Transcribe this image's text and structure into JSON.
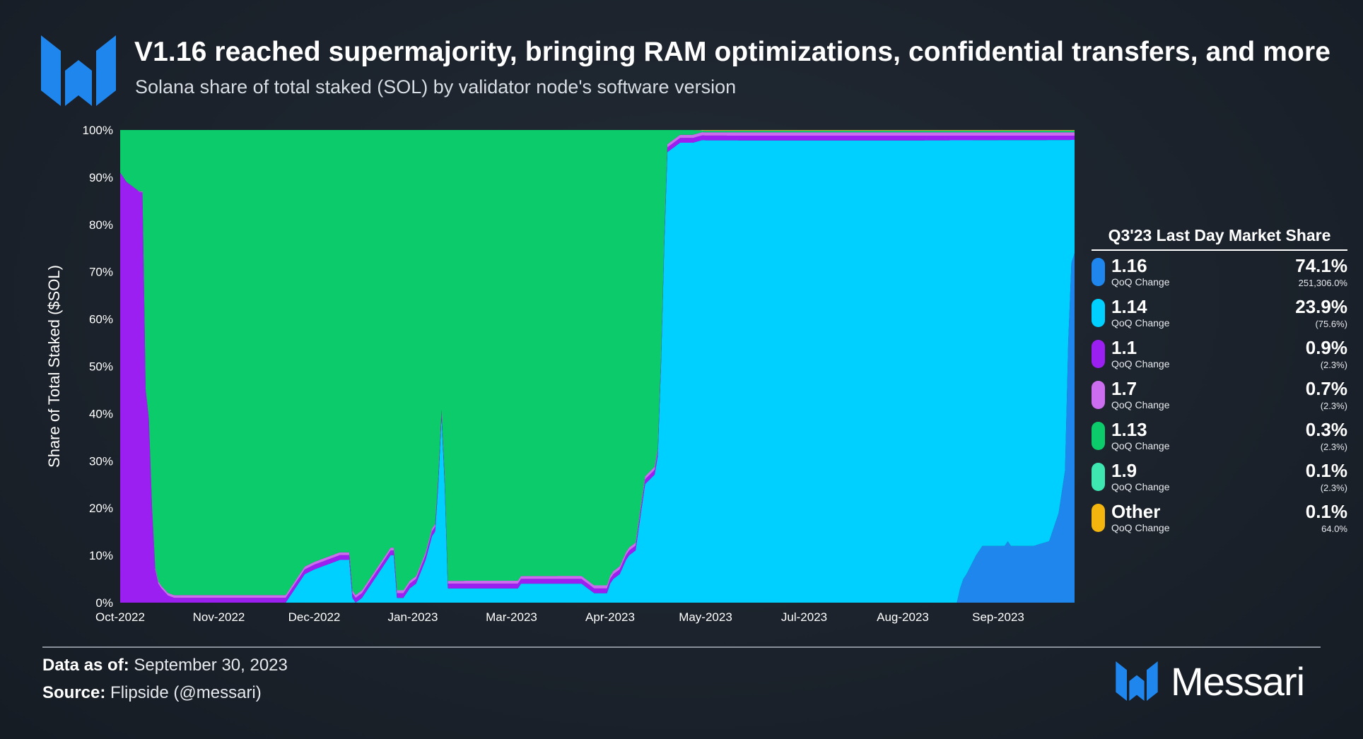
{
  "header": {
    "title": "V1.16 reached supermajority, bringing RAM optimizations, confidential transfers, and more",
    "subtitle": "Solana share of total staked (SOL) by validator node's software version"
  },
  "legend": {
    "title": "Q3'23 Last Day Market Share",
    "sub_label": "QoQ Change",
    "items": [
      {
        "name": "1.16",
        "value": "74.1%",
        "change": "251,306.0%",
        "color": "#1f86ee"
      },
      {
        "name": "1.14",
        "value": "23.9%",
        "change": "(75.6%)",
        "color": "#00d0ff"
      },
      {
        "name": "1.1",
        "value": "0.9%",
        "change": "(2.3%)",
        "color": "#9b1ff0"
      },
      {
        "name": "1.7",
        "value": "0.7%",
        "change": "(2.3%)",
        "color": "#cc6df0"
      },
      {
        "name": "1.13",
        "value": "0.3%",
        "change": "(2.3%)",
        "color": "#0ccb6b"
      },
      {
        "name": "1.9",
        "value": "0.1%",
        "change": "(2.3%)",
        "color": "#3ee6b0"
      },
      {
        "name": "Other",
        "value": "0.1%",
        "change": "64.0%",
        "color": "#f5b50f"
      }
    ]
  },
  "footer": {
    "data_as_of_label": "Data as of:",
    "data_as_of_value": "September 30, 2023",
    "source_label": "Source:",
    "source_value": "Flipside (@messari)"
  },
  "brand": {
    "name": "Messari",
    "color": "#1f86ee"
  },
  "chart_data": {
    "type": "area",
    "stacked": true,
    "ylabel": "Share of Total Staked ($SOL)",
    "xlabel": "",
    "ylim": [
      0,
      100
    ],
    "yticks": [
      "0%",
      "10%",
      "20%",
      "30%",
      "40%",
      "50%",
      "60%",
      "70%",
      "80%",
      "90%",
      "100%"
    ],
    "xticks": [
      {
        "label": "Oct-2022",
        "x": 0
      },
      {
        "label": "Nov-2022",
        "x": 31
      },
      {
        "label": "Dec-2022",
        "x": 61
      },
      {
        "label": "Jan-2023",
        "x": 92
      },
      {
        "label": "Mar-2023",
        "x": 123
      },
      {
        "label": "Apr-2023",
        "x": 154
      },
      {
        "label": "May-2023",
        "x": 184
      },
      {
        "label": "Jul-2023",
        "x": 215
      },
      {
        "label": "Aug-2023",
        "x": 246
      },
      {
        "label": "Sep-2023",
        "x": 276
      }
    ],
    "x_max": 300,
    "grid": false,
    "series": [
      {
        "name": "1.16",
        "color": "#1f86ee",
        "points": [
          [
            0,
            0
          ],
          [
            263,
            0
          ],
          [
            264,
            3
          ],
          [
            265,
            5
          ],
          [
            266,
            6
          ],
          [
            269,
            10
          ],
          [
            271,
            12
          ],
          [
            278,
            12
          ],
          [
            279,
            13
          ],
          [
            280,
            12
          ],
          [
            287,
            12
          ],
          [
            292,
            13
          ],
          [
            293,
            15
          ],
          [
            295,
            19
          ],
          [
            297,
            28
          ],
          [
            298,
            55
          ],
          [
            299,
            72
          ],
          [
            300,
            74
          ]
        ]
      },
      {
        "name": "1.14",
        "color": "#00d0ff",
        "points": [
          [
            0,
            0
          ],
          [
            52,
            0
          ],
          [
            54,
            2
          ],
          [
            58,
            6
          ],
          [
            61,
            7
          ],
          [
            65,
            8
          ],
          [
            69,
            9
          ],
          [
            72,
            9
          ],
          [
            73,
            1
          ],
          [
            74,
            0
          ],
          [
            76,
            1
          ],
          [
            78,
            3
          ],
          [
            81,
            6
          ],
          [
            83,
            8
          ],
          [
            85,
            10
          ],
          [
            86,
            10
          ],
          [
            87,
            1
          ],
          [
            88,
            1
          ],
          [
            89,
            1
          ],
          [
            91,
            3
          ],
          [
            93,
            4
          ],
          [
            96,
            9
          ],
          [
            98,
            14
          ],
          [
            99,
            15
          ],
          [
            100,
            25
          ],
          [
            101,
            39
          ],
          [
            102,
            25
          ],
          [
            103,
            3
          ],
          [
            108,
            3
          ],
          [
            114,
            3
          ],
          [
            125,
            3
          ],
          [
            126,
            4
          ],
          [
            131,
            4
          ],
          [
            139,
            4
          ],
          [
            145,
            4
          ],
          [
            149,
            2
          ],
          [
            153,
            2
          ],
          [
            154,
            4
          ],
          [
            155,
            5
          ],
          [
            157,
            6
          ],
          [
            159,
            9
          ],
          [
            160,
            10
          ],
          [
            162,
            11
          ],
          [
            165,
            25
          ],
          [
            168,
            27
          ],
          [
            169,
            31
          ],
          [
            170,
            50
          ],
          [
            171,
            75
          ],
          [
            172,
            95
          ],
          [
            174,
            96
          ],
          [
            176,
            97
          ],
          [
            180,
            97
          ],
          [
            183,
            98
          ],
          [
            200,
            98
          ],
          [
            230,
            98
          ],
          [
            263,
            98
          ],
          [
            264,
            95
          ],
          [
            265,
            93
          ],
          [
            266,
            92
          ],
          [
            269,
            88
          ],
          [
            271,
            86
          ],
          [
            278,
            86
          ],
          [
            279,
            85
          ],
          [
            280,
            86
          ],
          [
            287,
            86
          ],
          [
            292,
            85
          ],
          [
            293,
            83
          ],
          [
            295,
            79
          ],
          [
            297,
            70
          ],
          [
            298,
            43
          ],
          [
            299,
            26
          ],
          [
            300,
            24
          ]
        ]
      },
      {
        "name": "1.1",
        "color": "#9b1ff0",
        "points": [
          [
            0,
            91
          ],
          [
            2,
            89
          ],
          [
            4,
            88
          ],
          [
            6,
            87
          ],
          [
            7,
            87
          ],
          [
            8,
            45
          ],
          [
            9,
            39
          ],
          [
            10,
            20
          ],
          [
            11,
            7
          ],
          [
            12,
            4
          ],
          [
            13,
            3
          ],
          [
            15,
            1.5
          ],
          [
            17,
            1
          ],
          [
            20,
            1
          ],
          [
            30,
            1
          ],
          [
            40,
            1
          ],
          [
            52,
            1
          ],
          [
            60,
            1
          ],
          [
            72,
            1
          ],
          [
            74,
            1
          ],
          [
            80,
            1
          ],
          [
            90,
            1
          ],
          [
            100,
            1
          ],
          [
            110,
            1
          ],
          [
            120,
            1
          ],
          [
            130,
            1
          ],
          [
            140,
            1
          ],
          [
            150,
            1
          ],
          [
            160,
            1
          ],
          [
            170,
            1
          ],
          [
            180,
            1
          ],
          [
            200,
            1
          ],
          [
            250,
            1
          ],
          [
            300,
            0.9
          ]
        ]
      },
      {
        "name": "1.7",
        "color": "#cc6df0",
        "points": [
          [
            0,
            0
          ],
          [
            5,
            0
          ],
          [
            10,
            0.5
          ],
          [
            20,
            0.6
          ],
          [
            100,
            0.6
          ],
          [
            200,
            0.7
          ],
          [
            300,
            0.7
          ]
        ]
      },
      {
        "name": "1.13",
        "color": "#0ccb6b",
        "points": [
          [
            0,
            9
          ],
          [
            2,
            11
          ],
          [
            4,
            12
          ],
          [
            6,
            13
          ],
          [
            7,
            13
          ],
          [
            8,
            55
          ],
          [
            9,
            61
          ],
          [
            10,
            80
          ],
          [
            11,
            93
          ],
          [
            12,
            96
          ],
          [
            13,
            97
          ],
          [
            15,
            97.5
          ],
          [
            17,
            98
          ],
          [
            20,
            98
          ],
          [
            30,
            98
          ],
          [
            40,
            98
          ],
          [
            52,
            98
          ],
          [
            54,
            96
          ],
          [
            58,
            92
          ],
          [
            61,
            91
          ],
          [
            65,
            90
          ],
          [
            69,
            89
          ],
          [
            72,
            89
          ],
          [
            73,
            97
          ],
          [
            74,
            98
          ],
          [
            76,
            97
          ],
          [
            78,
            95
          ],
          [
            81,
            92
          ],
          [
            83,
            90
          ],
          [
            85,
            88
          ],
          [
            86,
            88
          ],
          [
            87,
            97
          ],
          [
            88,
            97
          ],
          [
            89,
            97
          ],
          [
            91,
            95
          ],
          [
            93,
            94
          ],
          [
            96,
            89
          ],
          [
            98,
            84
          ],
          [
            99,
            83
          ],
          [
            100,
            73
          ],
          [
            101,
            59
          ],
          [
            102,
            73
          ],
          [
            103,
            95
          ],
          [
            108,
            95
          ],
          [
            114,
            95
          ],
          [
            125,
            95
          ],
          [
            126,
            94
          ],
          [
            131,
            94
          ],
          [
            139,
            94
          ],
          [
            145,
            94
          ],
          [
            149,
            96
          ],
          [
            153,
            96
          ],
          [
            154,
            94
          ],
          [
            155,
            93
          ],
          [
            157,
            92
          ],
          [
            159,
            89
          ],
          [
            160,
            88
          ],
          [
            162,
            87
          ],
          [
            165,
            73
          ],
          [
            168,
            71
          ],
          [
            169,
            67
          ],
          [
            170,
            48
          ],
          [
            171,
            23
          ],
          [
            172,
            3
          ],
          [
            174,
            2
          ],
          [
            176,
            1
          ],
          [
            180,
            1
          ],
          [
            183,
            0.3
          ],
          [
            200,
            0.3
          ],
          [
            300,
            0.3
          ]
        ]
      },
      {
        "name": "1.9",
        "color": "#3ee6b0",
        "points": [
          [
            0,
            0
          ],
          [
            180,
            0
          ],
          [
            184,
            0.1
          ],
          [
            300,
            0.1
          ]
        ]
      },
      {
        "name": "Other",
        "color": "#f5b50f",
        "points": [
          [
            0,
            0
          ],
          [
            180,
            0
          ],
          [
            184,
            0.1
          ],
          [
            300,
            0.1
          ]
        ]
      }
    ]
  }
}
